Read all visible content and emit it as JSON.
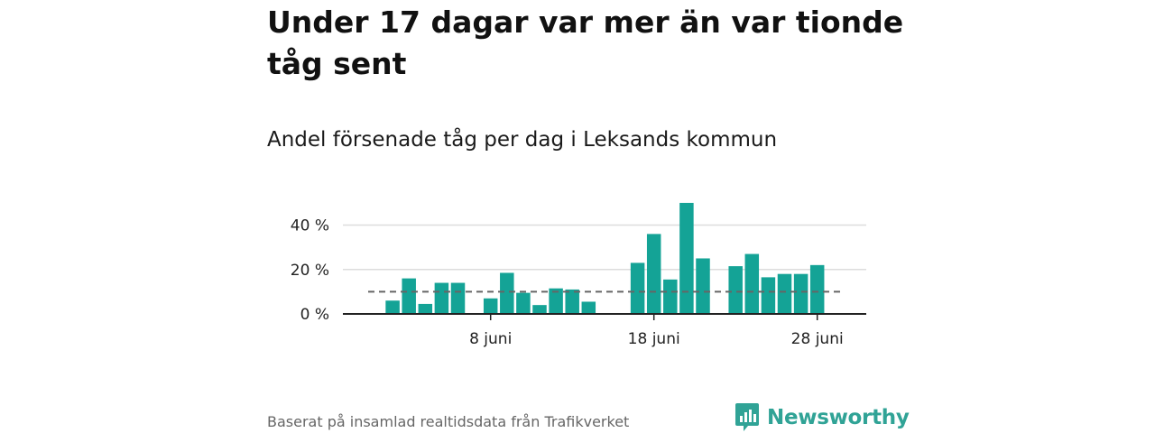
{
  "chart_data": {
    "type": "bar",
    "title": "Under 17 dagar var mer än var tionde tåg sent",
    "subtitle": "Andel försenade tåg per dag i Leksands kommun",
    "x": [
      1,
      2,
      3,
      4,
      5,
      6,
      7,
      8,
      9,
      10,
      11,
      12,
      13,
      14,
      15,
      16,
      17,
      18,
      19,
      20,
      21,
      22,
      23,
      24,
      25,
      26,
      27,
      28,
      29,
      30
    ],
    "values": [
      null,
      6,
      16,
      4.5,
      14,
      14,
      null,
      7,
      18.5,
      9.5,
      4,
      11.5,
      11,
      5.5,
      null,
      null,
      23,
      36,
      15.5,
      50,
      25,
      null,
      21.5,
      27,
      16.5,
      18,
      18,
      22,
      null,
      null
    ],
    "x_ticks": [
      {
        "x": 8,
        "label": "8 juni"
      },
      {
        "x": 18,
        "label": "18 juni"
      },
      {
        "x": 28,
        "label": "28 juni"
      }
    ],
    "y_ticks": [
      {
        "value": 0,
        "label": "0 %"
      },
      {
        "value": 20,
        "label": "20 %"
      },
      {
        "value": 40,
        "label": "40 %"
      }
    ],
    "ylim": [
      0,
      52
    ],
    "reference_line": {
      "value": 10,
      "style": "dashed",
      "color": "#666666"
    },
    "bar_color": "#14a396",
    "grid": true,
    "source": "Baserat på insamlad realtidsdata från Trafikverket"
  },
  "brand": {
    "name": "Newsworthy",
    "logo_icon": "bar-chart-speech-bubble-icon",
    "color": "#30a396"
  }
}
